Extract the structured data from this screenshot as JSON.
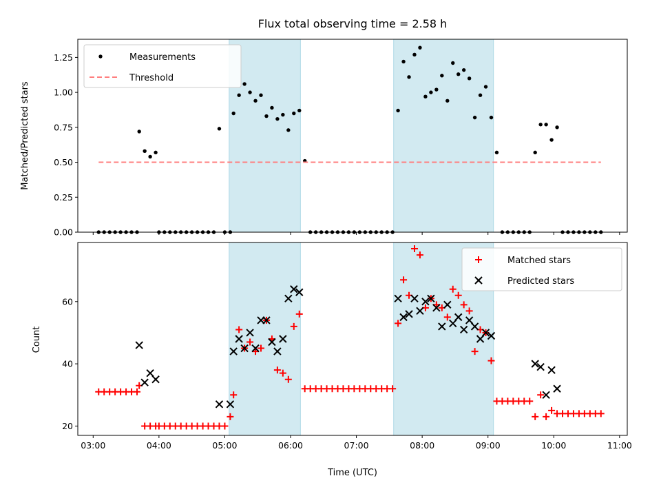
{
  "chart_data": [
    {
      "type": "scatter",
      "title": "Flux total observing time = 2.58 h",
      "xlabel": "",
      "ylabel": "Matched/Predicted stars",
      "ylim": [
        0,
        1.38
      ],
      "yticks": [
        "0.00",
        "0.25",
        "0.50",
        "0.75",
        "1.00",
        "1.25"
      ],
      "legend_position": "top-left",
      "shaded_intervals": [
        [
          "05:04",
          "06:09"
        ],
        [
          "07:34",
          "09:05"
        ]
      ],
      "series": [
        {
          "name": "Measurements",
          "marker": "dot",
          "color": "#000000",
          "points": [
            [
              "03:05",
              0
            ],
            [
              "03:10",
              0
            ],
            [
              "03:15",
              0
            ],
            [
              "03:20",
              0
            ],
            [
              "03:25",
              0
            ],
            [
              "03:30",
              0
            ],
            [
              "03:35",
              0
            ],
            [
              "03:40",
              0
            ],
            [
              "03:42",
              0.72
            ],
            [
              "03:47",
              0.58
            ],
            [
              "03:52",
              0.54
            ],
            [
              "03:57",
              0.57
            ],
            [
              "04:00",
              0
            ],
            [
              "04:05",
              0
            ],
            [
              "04:10",
              0
            ],
            [
              "04:15",
              0
            ],
            [
              "04:20",
              0
            ],
            [
              "04:25",
              0
            ],
            [
              "04:30",
              0
            ],
            [
              "04:35",
              0
            ],
            [
              "04:40",
              0
            ],
            [
              "04:45",
              0
            ],
            [
              "04:50",
              0
            ],
            [
              "04:55",
              0.74
            ],
            [
              "05:00",
              0
            ],
            [
              "05:05",
              0
            ],
            [
              "05:08",
              0.85
            ],
            [
              "05:13",
              0.98
            ],
            [
              "05:18",
              1.06
            ],
            [
              "05:23",
              1.0
            ],
            [
              "05:28",
              0.94
            ],
            [
              "05:33",
              0.98
            ],
            [
              "05:38",
              0.83
            ],
            [
              "05:43",
              0.89
            ],
            [
              "05:48",
              0.81
            ],
            [
              "05:53",
              0.84
            ],
            [
              "05:58",
              0.73
            ],
            [
              "06:03",
              0.85
            ],
            [
              "06:08",
              0.87
            ],
            [
              "06:13",
              0.51
            ],
            [
              "06:18",
              0
            ],
            [
              "06:23",
              0
            ],
            [
              "06:28",
              0
            ],
            [
              "06:33",
              0
            ],
            [
              "06:38",
              0
            ],
            [
              "06:43",
              0
            ],
            [
              "06:48",
              0
            ],
            [
              "06:53",
              0
            ],
            [
              "06:58",
              0
            ],
            [
              "07:03",
              0
            ],
            [
              "07:08",
              0
            ],
            [
              "07:13",
              0
            ],
            [
              "07:18",
              0
            ],
            [
              "07:23",
              0
            ],
            [
              "07:28",
              0
            ],
            [
              "07:33",
              0
            ],
            [
              "07:38",
              0.87
            ],
            [
              "07:43",
              1.22
            ],
            [
              "07:48",
              1.11
            ],
            [
              "07:53",
              1.27
            ],
            [
              "07:58",
              1.32
            ],
            [
              "08:03",
              0.97
            ],
            [
              "08:08",
              1.0
            ],
            [
              "08:13",
              1.02
            ],
            [
              "08:18",
              1.12
            ],
            [
              "08:23",
              0.94
            ],
            [
              "08:28",
              1.21
            ],
            [
              "08:33",
              1.13
            ],
            [
              "08:38",
              1.16
            ],
            [
              "08:43",
              1.1
            ],
            [
              "08:48",
              0.82
            ],
            [
              "08:53",
              0.98
            ],
            [
              "08:58",
              1.04
            ],
            [
              "09:03",
              0.82
            ],
            [
              "09:08",
              0.57
            ],
            [
              "09:13",
              0
            ],
            [
              "09:18",
              0
            ],
            [
              "09:23",
              0
            ],
            [
              "09:28",
              0
            ],
            [
              "09:33",
              0
            ],
            [
              "09:38",
              0
            ],
            [
              "09:43",
              0.57
            ],
            [
              "09:48",
              0.77
            ],
            [
              "09:53",
              0.77
            ],
            [
              "09:58",
              0.66
            ],
            [
              "10:03",
              0.75
            ],
            [
              "10:08",
              0
            ],
            [
              "10:13",
              0
            ],
            [
              "10:18",
              0
            ],
            [
              "10:23",
              0
            ],
            [
              "10:28",
              0
            ],
            [
              "10:33",
              0
            ],
            [
              "10:38",
              0
            ],
            [
              "10:43",
              0
            ]
          ]
        },
        {
          "name": "Threshold",
          "style": "dashed",
          "color": "#ff7f7f",
          "points": [
            [
              "03:05",
              0.5
            ],
            [
              "10:43",
              0.5
            ]
          ]
        }
      ]
    },
    {
      "type": "scatter",
      "title": "",
      "xlabel": "Time (UTC)",
      "ylabel": "Count",
      "ylim": [
        17,
        79
      ],
      "yticks": [
        "20",
        "40",
        "60"
      ],
      "xticks": [
        "03:00",
        "04:00",
        "05:00",
        "06:00",
        "07:00",
        "08:00",
        "09:00",
        "10:00",
        "11:00"
      ],
      "legend_position": "top-right",
      "shaded_intervals": [
        [
          "05:04",
          "06:09"
        ],
        [
          "07:34",
          "09:05"
        ]
      ],
      "series": [
        {
          "name": "Matched stars",
          "marker": "plus",
          "color": "#ff0000",
          "points": [
            [
              "03:05",
              31
            ],
            [
              "03:10",
              31
            ],
            [
              "03:15",
              31
            ],
            [
              "03:20",
              31
            ],
            [
              "03:25",
              31
            ],
            [
              "03:30",
              31
            ],
            [
              "03:35",
              31
            ],
            [
              "03:40",
              31
            ],
            [
              "03:42",
              33
            ],
            [
              "03:47",
              20
            ],
            [
              "03:52",
              20
            ],
            [
              "03:57",
              20
            ],
            [
              "04:00",
              20
            ],
            [
              "04:05",
              20
            ],
            [
              "04:10",
              20
            ],
            [
              "04:15",
              20
            ],
            [
              "04:20",
              20
            ],
            [
              "04:25",
              20
            ],
            [
              "04:30",
              20
            ],
            [
              "04:35",
              20
            ],
            [
              "04:40",
              20
            ],
            [
              "04:45",
              20
            ],
            [
              "04:50",
              20
            ],
            [
              "04:55",
              20
            ],
            [
              "05:00",
              20
            ],
            [
              "05:05",
              23
            ],
            [
              "05:08",
              30
            ],
            [
              "05:13",
              51
            ],
            [
              "05:18",
              45
            ],
            [
              "05:23",
              47
            ],
            [
              "05:28",
              44
            ],
            [
              "05:33",
              45
            ],
            [
              "05:38",
              54
            ],
            [
              "05:43",
              48
            ],
            [
              "05:48",
              38
            ],
            [
              "05:53",
              37
            ],
            [
              "05:58",
              35
            ],
            [
              "06:03",
              52
            ],
            [
              "06:08",
              56
            ],
            [
              "06:13",
              32
            ],
            [
              "06:18",
              32
            ],
            [
              "06:23",
              32
            ],
            [
              "06:28",
              32
            ],
            [
              "06:33",
              32
            ],
            [
              "06:38",
              32
            ],
            [
              "06:43",
              32
            ],
            [
              "06:48",
              32
            ],
            [
              "06:53",
              32
            ],
            [
              "06:58",
              32
            ],
            [
              "07:03",
              32
            ],
            [
              "07:08",
              32
            ],
            [
              "07:13",
              32
            ],
            [
              "07:18",
              32
            ],
            [
              "07:23",
              32
            ],
            [
              "07:28",
              32
            ],
            [
              "07:33",
              32
            ],
            [
              "07:38",
              53
            ],
            [
              "07:43",
              67
            ],
            [
              "07:48",
              62
            ],
            [
              "07:53",
              77
            ],
            [
              "07:58",
              75
            ],
            [
              "08:03",
              58
            ],
            [
              "08:08",
              61
            ],
            [
              "08:13",
              59
            ],
            [
              "08:18",
              58
            ],
            [
              "08:23",
              55
            ],
            [
              "08:28",
              64
            ],
            [
              "08:33",
              62
            ],
            [
              "08:38",
              59
            ],
            [
              "08:43",
              57
            ],
            [
              "08:48",
              44
            ],
            [
              "08:53",
              51
            ],
            [
              "08:58",
              50
            ],
            [
              "09:03",
              41
            ],
            [
              "09:08",
              28
            ],
            [
              "09:13",
              28
            ],
            [
              "09:18",
              28
            ],
            [
              "09:23",
              28
            ],
            [
              "09:28",
              28
            ],
            [
              "09:33",
              28
            ],
            [
              "09:38",
              28
            ],
            [
              "09:43",
              23
            ],
            [
              "09:48",
              30
            ],
            [
              "09:53",
              23
            ],
            [
              "09:58",
              25
            ],
            [
              "10:03",
              24
            ],
            [
              "10:08",
              24
            ],
            [
              "10:13",
              24
            ],
            [
              "10:18",
              24
            ],
            [
              "10:23",
              24
            ],
            [
              "10:28",
              24
            ],
            [
              "10:33",
              24
            ],
            [
              "10:38",
              24
            ],
            [
              "10:43",
              24
            ]
          ]
        },
        {
          "name": "Predicted stars",
          "marker": "x",
          "color": "#000000",
          "points": [
            [
              "03:42",
              46
            ],
            [
              "03:47",
              34
            ],
            [
              "03:52",
              37
            ],
            [
              "03:57",
              35
            ],
            [
              "04:55",
              27
            ],
            [
              "05:05",
              27
            ],
            [
              "05:08",
              44
            ],
            [
              "05:13",
              48
            ],
            [
              "05:18",
              45
            ],
            [
              "05:23",
              50
            ],
            [
              "05:28",
              45
            ],
            [
              "05:33",
              54
            ],
            [
              "05:38",
              54
            ],
            [
              "05:43",
              47
            ],
            [
              "05:48",
              44
            ],
            [
              "05:53",
              48
            ],
            [
              "05:58",
              61
            ],
            [
              "06:03",
              64
            ],
            [
              "06:08",
              63
            ],
            [
              "07:38",
              61
            ],
            [
              "07:43",
              55
            ],
            [
              "07:48",
              56
            ],
            [
              "07:53",
              61
            ],
            [
              "07:58",
              57
            ],
            [
              "08:03",
              60
            ],
            [
              "08:08",
              61
            ],
            [
              "08:13",
              58
            ],
            [
              "08:18",
              52
            ],
            [
              "08:23",
              59
            ],
            [
              "08:28",
              53
            ],
            [
              "08:33",
              55
            ],
            [
              "08:38",
              51
            ],
            [
              "08:43",
              54
            ],
            [
              "08:48",
              52
            ],
            [
              "08:53",
              48
            ],
            [
              "08:58",
              50
            ],
            [
              "09:03",
              49
            ],
            [
              "09:43",
              40
            ],
            [
              "09:48",
              39
            ],
            [
              "09:53",
              30
            ],
            [
              "09:58",
              38
            ],
            [
              "10:03",
              32
            ]
          ]
        }
      ]
    }
  ],
  "colors": {
    "shading": "#add8e6",
    "threshold": "#ff7f7f",
    "matched": "#ff0000",
    "measurements": "#000000"
  }
}
